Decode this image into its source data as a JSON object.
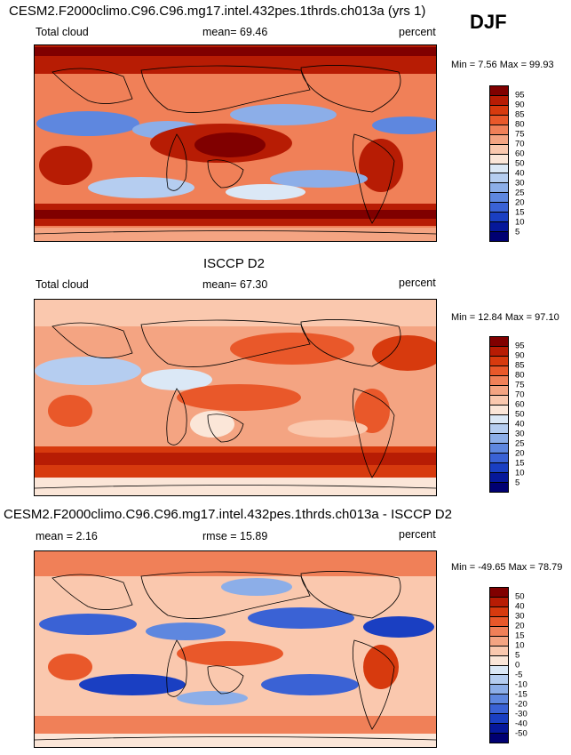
{
  "season": "DJF",
  "panels": [
    {
      "title": "CESM2.F2000climo.C96.C96.mg17.intel.432pes.1thrds.ch013a (yrs 1)",
      "left_label": "Total cloud",
      "center_label": "mean=  69.46",
      "right_label": "percent",
      "minmax": "Min =  7.56 Max =  99.93",
      "colorbar_labels": [
        "95",
        "90",
        "85",
        "80",
        "75",
        "70",
        "60",
        "50",
        "40",
        "30",
        "25",
        "20",
        "15",
        "10",
        "5"
      ],
      "colors": [
        "#800000",
        "#b71c04",
        "#d73a0e",
        "#e9582a",
        "#f08058",
        "#f4a482",
        "#fac8ae",
        "#fbe6d8",
        "#dbe8f6",
        "#b5cdf0",
        "#8caee8",
        "#5e87df",
        "#3a62d5",
        "#1a3fc2",
        "#06189a",
        "#000072"
      ]
    },
    {
      "title": "ISCCP D2",
      "left_label": "Total cloud",
      "center_label": "mean=  67.30",
      "right_label": "percent",
      "minmax": "Min =  12.84 Max =  97.10",
      "colorbar_labels": [
        "95",
        "90",
        "85",
        "80",
        "75",
        "70",
        "60",
        "50",
        "40",
        "30",
        "25",
        "20",
        "15",
        "10",
        "5"
      ],
      "colors": [
        "#800000",
        "#b71c04",
        "#d73a0e",
        "#e9582a",
        "#f08058",
        "#f4a482",
        "#fac8ae",
        "#fbe6d8",
        "#dbe8f6",
        "#b5cdf0",
        "#8caee8",
        "#5e87df",
        "#3a62d5",
        "#1a3fc2",
        "#06189a",
        "#000072"
      ]
    },
    {
      "title": "CESM2.F2000climo.C96.C96.mg17.intel.432pes.1thrds.ch013a - ISCCP D2",
      "left_label": "mean =  2.16",
      "center_label": "rmse =  15.89",
      "right_label": "percent",
      "minmax": "Min = -49.65 Max =  78.79",
      "colorbar_labels": [
        "50",
        "40",
        "30",
        "20",
        "15",
        "10",
        "5",
        "0",
        "-5",
        "-10",
        "-15",
        "-20",
        "-30",
        "-40",
        "-50"
      ],
      "colors": [
        "#800000",
        "#b71c04",
        "#d73a0e",
        "#e9582a",
        "#f08058",
        "#f4a482",
        "#fac8ae",
        "#fbe6d8",
        "#dbe8f6",
        "#b5cdf0",
        "#8caee8",
        "#5e87df",
        "#3a62d5",
        "#1a3fc2",
        "#06189a",
        "#000072"
      ]
    }
  ]
}
